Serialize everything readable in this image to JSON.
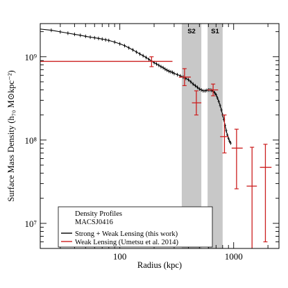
{
  "chart_data": {
    "type": "scatter",
    "title": "",
    "xlabel": "Radius (kpc)",
    "ylabel": "Surface Mass Density (h₇₀ M⊙kpc⁻²)",
    "xscale": "log",
    "yscale": "log",
    "xlim": [
      20,
      2500
    ],
    "ylim": [
      5000000,
      2500000000
    ],
    "x_tick_labels": [
      "100",
      "1000"
    ],
    "y_tick_labels": [
      "10⁷",
      "10⁸",
      "10⁹"
    ],
    "grid": false,
    "shaded_regions": [
      {
        "label": "S2",
        "x_range": [
          350,
          520
        ]
      },
      {
        "label": "S1",
        "x_range": [
          590,
          800
        ]
      }
    ],
    "legend": {
      "placement": "bottom-left",
      "title_lines": [
        "Density Profiles",
        "MACSJ0416"
      ],
      "entries": [
        {
          "label": "Strong + Weak Lensing (this work)",
          "color": "#000000"
        },
        {
          "label": "Weak Lensing (Umetsu et al. 2014)",
          "color": "#cc1f1f"
        }
      ]
    },
    "series": [
      {
        "name": "Strong + Weak Lensing (this work)",
        "color": "#000000",
        "x": [
          20,
          25,
          30,
          35,
          40,
          45,
          50,
          55,
          60,
          65,
          70,
          75,
          80,
          90,
          100,
          110,
          120,
          130,
          140,
          150,
          160,
          170,
          180,
          190,
          200,
          210,
          220,
          230,
          240,
          250,
          260,
          270,
          280,
          290,
          300,
          320,
          340,
          360,
          380,
          400,
          420,
          440,
          460,
          480,
          500,
          520,
          540,
          560,
          580,
          600,
          620,
          640,
          660,
          680,
          700,
          720,
          740,
          760,
          780,
          800,
          820,
          840,
          860,
          880,
          900,
          920,
          940
        ],
        "y": [
          2150000000,
          2080000000,
          1990000000,
          1920000000,
          1860000000,
          1810000000,
          1760000000,
          1720000000,
          1690000000,
          1660000000,
          1630000000,
          1600000000,
          1570000000,
          1500000000,
          1430000000,
          1360000000,
          1280000000,
          1210000000,
          1140000000,
          1080000000,
          1030000000,
          980000000,
          930000000,
          890000000,
          850000000,
          820000000,
          790000000,
          760000000,
          740000000,
          710000000,
          690000000,
          670000000,
          660000000,
          650000000,
          630000000,
          610000000,
          590000000,
          570000000,
          550000000,
          530000000,
          500000000,
          470000000,
          450000000,
          430000000,
          410000000,
          400000000,
          390000000,
          390000000,
          395000000,
          400000000,
          400000000,
          395000000,
          385000000,
          370000000,
          350000000,
          320000000,
          290000000,
          260000000,
          230000000,
          200000000,
          175000000,
          150000000,
          130000000,
          115000000,
          105000000,
          97000000,
          92000000
        ],
        "errors": "small, symmetric"
      },
      {
        "name": "Weak Lensing (Umetsu et al. 2014)",
        "color": "#cc1f1f",
        "points": [
          {
            "x": 190,
            "y": 880000000,
            "x_range": [
              20,
              290
            ],
            "y_err": [
              760000000,
              1000000000
            ]
          },
          {
            "x": 370,
            "y": 570000000,
            "x_range": [
              330,
              420
            ],
            "y_err": [
              450000000,
              720000000
            ]
          },
          {
            "x": 470,
            "y": 280000000,
            "x_range": [
              430,
              520
            ],
            "y_err": [
              200000000,
              390000000
            ]
          },
          {
            "x": 660,
            "y": 400000000,
            "x_range": [
              590,
              730
            ],
            "y_err": [
              340000000,
              470000000
            ]
          },
          {
            "x": 830,
            "y": 110000000,
            "x_range": [
              760,
              900
            ],
            "y_err": [
              70000000,
              200000000
            ]
          },
          {
            "x": 1060,
            "y": 80000000,
            "x_range": [
              960,
              1200
            ],
            "y_err": [
              26000000,
              135000000
            ]
          },
          {
            "x": 1450,
            "y": 28000000,
            "x_range": [
              1300,
              1600
            ],
            "y_err": [
              4500000,
              82000000
            ]
          },
          {
            "x": 1900,
            "y": 47000000,
            "x_range": [
              1700,
              2150
            ],
            "y_err": [
              6000000,
              89000000
            ]
          }
        ]
      }
    ]
  }
}
